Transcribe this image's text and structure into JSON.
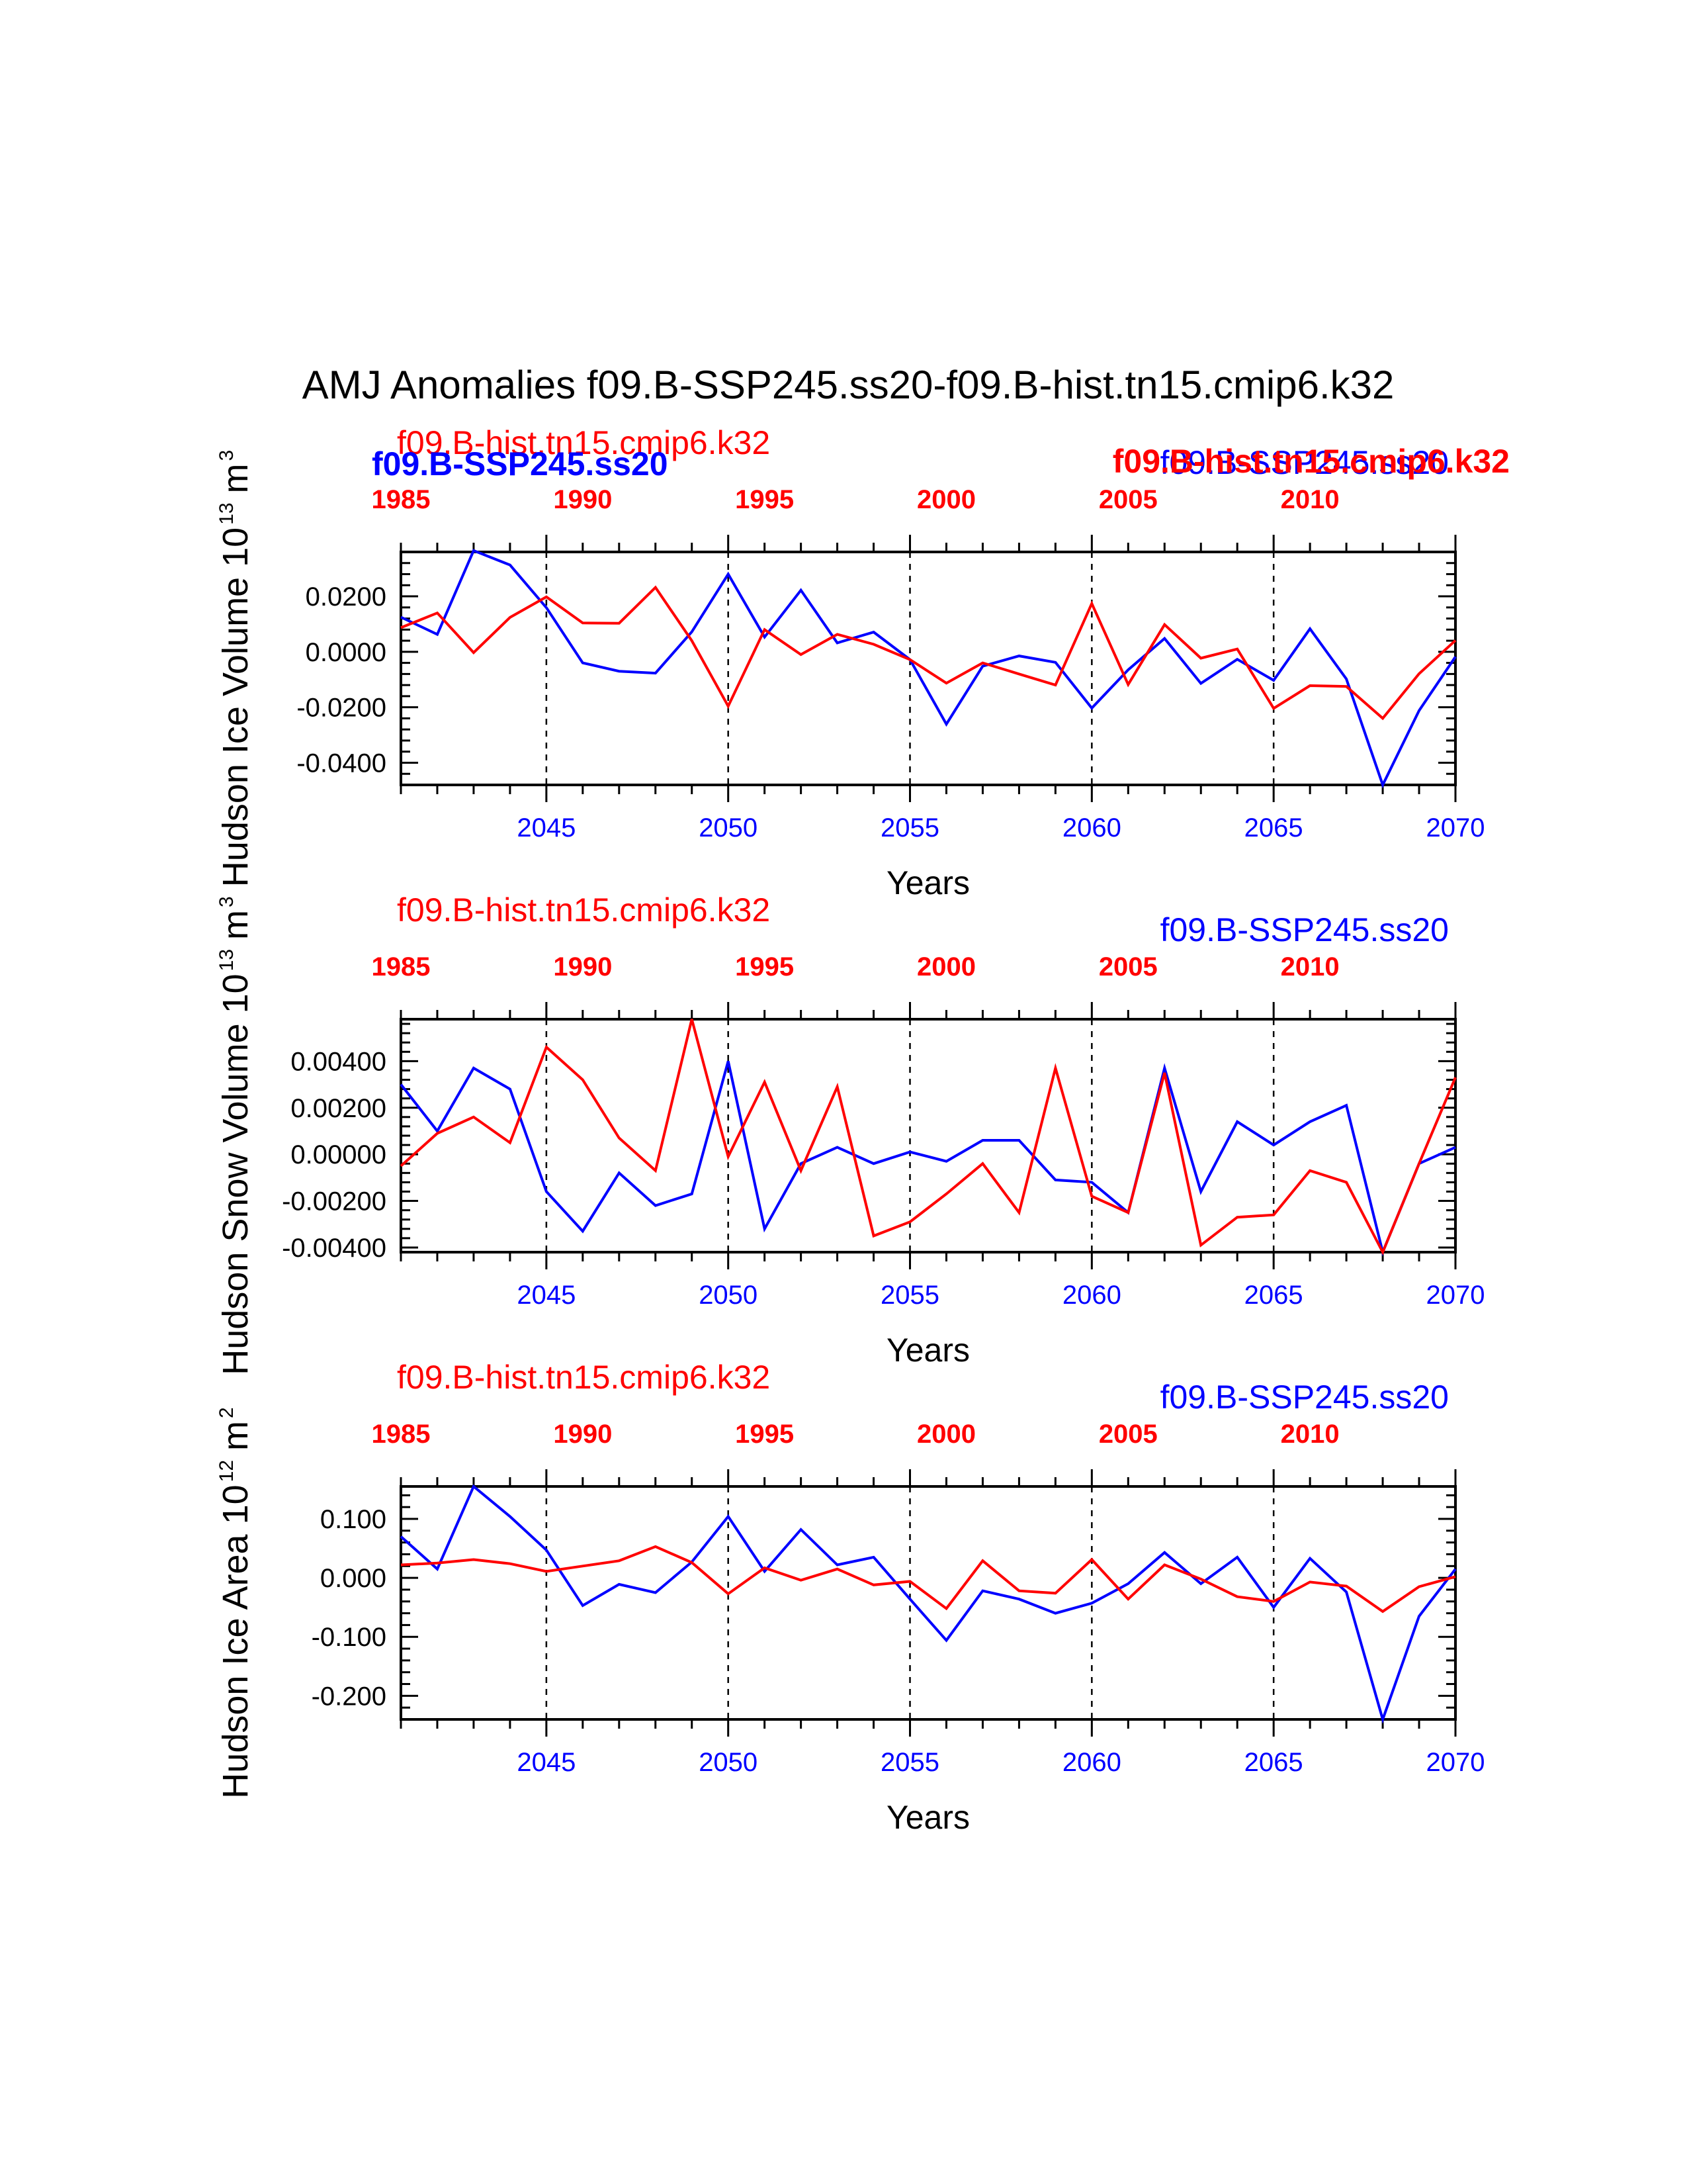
{
  "title": "AMJ Anomalies f09.B-SSP245.ss20-f09.B-hist.tn15.cmip6.k32",
  "colors": {
    "ssp": "#0000ff",
    "hist": "#ff0000",
    "axis": "#000000"
  },
  "chart_data": [
    {
      "type": "line",
      "ylabel": "Hudson Ice Volume 10",
      "ylabel_exp": "13",
      "ylabel_unit": "m",
      "ylabel_unit_exp": "3",
      "xlabel": "Years",
      "bottom_ticks": [
        "2045",
        "2050",
        "2055",
        "2060",
        "2065",
        "2070"
      ],
      "top_ticks": [
        "1985",
        "1990",
        "1995",
        "2000",
        "2005",
        "2010"
      ],
      "ylim": [
        -0.048,
        0.036
      ],
      "yticks": [
        0.02,
        0.0,
        -0.02,
        -0.04
      ],
      "ytick_labels": [
        "0.0200",
        "0.0000",
        "-0.0200",
        "-0.0400"
      ],
      "legend_hist": "f09.B-hist.tn15.cmip6.k32",
      "legend_ssp": "f09.B-SSP245.ss20",
      "overlay_ssp": "f09.B-SSP245.ss20",
      "overlay_hist": "f09.B-hist.tn15.cmip6.k32",
      "x": [
        2041,
        2042,
        2043,
        2044,
        2045,
        2046,
        2047,
        2048,
        2049,
        2050,
        2051,
        2052,
        2053,
        2054,
        2055,
        2056,
        2057,
        2058,
        2059,
        2060,
        2061,
        2062,
        2063,
        2064,
        2065,
        2066,
        2067,
        2068,
        2069,
        2070
      ],
      "series": [
        {
          "key": "ssp",
          "values": [
            0.0125,
            0.0063,
            0.0365,
            0.0313,
            0.0159,
            -0.004,
            -0.007,
            -0.0077,
            0.0072,
            0.028,
            0.0053,
            0.0222,
            0.0032,
            0.0071,
            -0.0028,
            -0.0261,
            -0.0052,
            -0.0015,
            -0.0038,
            -0.0203,
            -0.0065,
            0.0048,
            -0.0114,
            -0.0027,
            -0.0103,
            0.0083,
            -0.0098,
            -0.048,
            -0.0212,
            -0.0018
          ]
        },
        {
          "key": "hist",
          "values": [
            0.0087,
            0.014,
            -0.0003,
            0.0124,
            0.0198,
            0.0104,
            0.0103,
            0.0232,
            0.004,
            -0.0196,
            0.008,
            -0.001,
            0.0063,
            0.0027,
            -0.0028,
            -0.0113,
            -0.004,
            -0.008,
            -0.012,
            0.0174,
            -0.0118,
            0.0098,
            -0.0023,
            0.001,
            -0.0204,
            -0.0122,
            -0.0125,
            -0.024,
            -0.0079,
            0.0041
          ]
        }
      ]
    },
    {
      "type": "line",
      "ylabel": "Hudson Snow Volume 10",
      "ylabel_exp": "13",
      "ylabel_unit": "m",
      "ylabel_unit_exp": "3",
      "xlabel": "Years",
      "bottom_ticks": [
        "2045",
        "2050",
        "2055",
        "2060",
        "2065",
        "2070"
      ],
      "top_ticks": [
        "1985",
        "1990",
        "1995",
        "2000",
        "2005",
        "2010"
      ],
      "ylim": [
        -0.0042,
        0.0058
      ],
      "yticks": [
        0.004,
        0.002,
        0.0,
        -0.002,
        -0.004
      ],
      "ytick_labels": [
        "0.00400",
        "0.00200",
        "0.00000",
        "-0.00200",
        "-0.00400"
      ],
      "legend_hist": "f09.B-hist.tn15.cmip6.k32",
      "legend_ssp": "f09.B-SSP245.ss20",
      "x": [
        2041,
        2042,
        2043,
        2044,
        2045,
        2046,
        2047,
        2048,
        2049,
        2050,
        2051,
        2052,
        2053,
        2054,
        2055,
        2056,
        2057,
        2058,
        2059,
        2060,
        2061,
        2062,
        2063,
        2064,
        2065,
        2066,
        2067,
        2068,
        2069,
        2070
      ],
      "series": [
        {
          "key": "ssp",
          "values": [
            0.003,
            0.001,
            0.0037,
            0.0028,
            -0.0016,
            -0.0033,
            -0.0008,
            -0.0022,
            -0.0017,
            0.004,
            -0.0032,
            -0.0004,
            0.0003,
            -0.0004,
            0.0001,
            -0.0003,
            0.0006,
            0.0006,
            -0.0011,
            -0.0012,
            -0.0025,
            0.0037,
            -0.0016,
            0.0014,
            0.0004,
            0.0014,
            0.0021,
            -0.0042,
            -0.0004,
            0.0003
          ]
        },
        {
          "key": "hist",
          "values": [
            -0.0005,
            0.0009,
            0.0016,
            0.0005,
            0.0046,
            0.0032,
            0.0007,
            -0.0007,
            0.0058,
            -0.0001,
            0.0031,
            -0.0007,
            0.0029,
            -0.0035,
            -0.0029,
            -0.0017,
            -0.0004,
            -0.0025,
            0.0037,
            -0.0018,
            -0.0025,
            0.0035,
            -0.0039,
            -0.0027,
            -0.0026,
            -0.0007,
            -0.0012,
            -0.0042,
            -0.0004,
            0.0033
          ]
        }
      ]
    },
    {
      "type": "line",
      "ylabel": "Hudson Ice Area 10",
      "ylabel_exp": "12",
      "ylabel_unit": "m",
      "ylabel_unit_exp": "2",
      "xlabel": "Years",
      "bottom_ticks": [
        "2045",
        "2050",
        "2055",
        "2060",
        "2065",
        "2070"
      ],
      "top_ticks": [
        "1985",
        "1990",
        "1995",
        "2000",
        "2005",
        "2010"
      ],
      "ylim": [
        -0.24,
        0.155
      ],
      "yticks": [
        0.1,
        0.0,
        -0.1,
        -0.2
      ],
      "ytick_labels": [
        "0.100",
        "0.000",
        "-0.100",
        "-0.200"
      ],
      "legend_hist": "f09.B-hist.tn15.cmip6.k32",
      "legend_ssp": "f09.B-SSP245.ss20",
      "x": [
        2041,
        2042,
        2043,
        2044,
        2045,
        2046,
        2047,
        2048,
        2049,
        2050,
        2051,
        2052,
        2053,
        2054,
        2055,
        2056,
        2057,
        2058,
        2059,
        2060,
        2061,
        2062,
        2063,
        2064,
        2065,
        2066,
        2067,
        2068,
        2069,
        2070
      ],
      "series": [
        {
          "key": "ssp",
          "values": [
            0.07,
            0.015,
            0.155,
            0.104,
            0.047,
            -0.047,
            -0.011,
            -0.025,
            0.027,
            0.104,
            0.011,
            0.082,
            0.022,
            0.035,
            -0.036,
            -0.106,
            -0.022,
            -0.036,
            -0.06,
            -0.043,
            -0.01,
            0.043,
            -0.01,
            0.035,
            -0.05,
            0.033,
            -0.024,
            -0.24,
            -0.065,
            0.015
          ]
        },
        {
          "key": "hist",
          "values": [
            0.022,
            0.025,
            0.031,
            0.024,
            0.011,
            0.02,
            0.029,
            0.053,
            0.026,
            -0.027,
            0.017,
            -0.004,
            0.015,
            -0.012,
            -0.006,
            -0.052,
            0.029,
            -0.022,
            -0.026,
            0.031,
            -0.036,
            0.022,
            -0.002,
            -0.032,
            -0.04,
            -0.007,
            -0.014,
            -0.057,
            -0.015,
            0.002
          ]
        }
      ]
    }
  ]
}
